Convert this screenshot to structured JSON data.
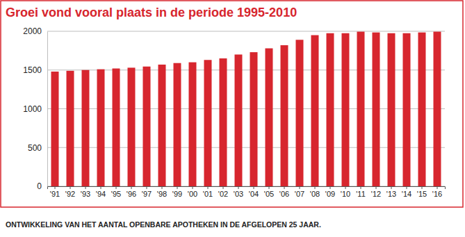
{
  "chart_data": {
    "type": "bar",
    "title": "Groei vond vooral plaats in de periode 1995-2010",
    "caption": "ONTWIKKELING VAN HET AANTAL OPENBARE APOTHEKEN IN DE AFGELOPEN 25 JAAR.",
    "categories": [
      "'91",
      "'92",
      "'93",
      "'94",
      "'95",
      "'96",
      "'97",
      "'98",
      "'99",
      "'00",
      "'01",
      "'02",
      "'03",
      "'04",
      "'05",
      "'06",
      "'07",
      "'08",
      "'09",
      "'10",
      "'11",
      "'12",
      "'13",
      "'14",
      "'15",
      "'16"
    ],
    "values": [
      1480,
      1490,
      1500,
      1510,
      1520,
      1530,
      1545,
      1570,
      1590,
      1600,
      1630,
      1650,
      1700,
      1730,
      1780,
      1820,
      1890,
      1950,
      1975,
      1975,
      1995,
      1985,
      1975,
      1975,
      1985,
      1995
    ],
    "color": "#d7262e",
    "ylim": [
      0,
      2000
    ],
    "yticks": [
      0,
      500,
      1000,
      1500,
      2000
    ],
    "grid": true
  }
}
